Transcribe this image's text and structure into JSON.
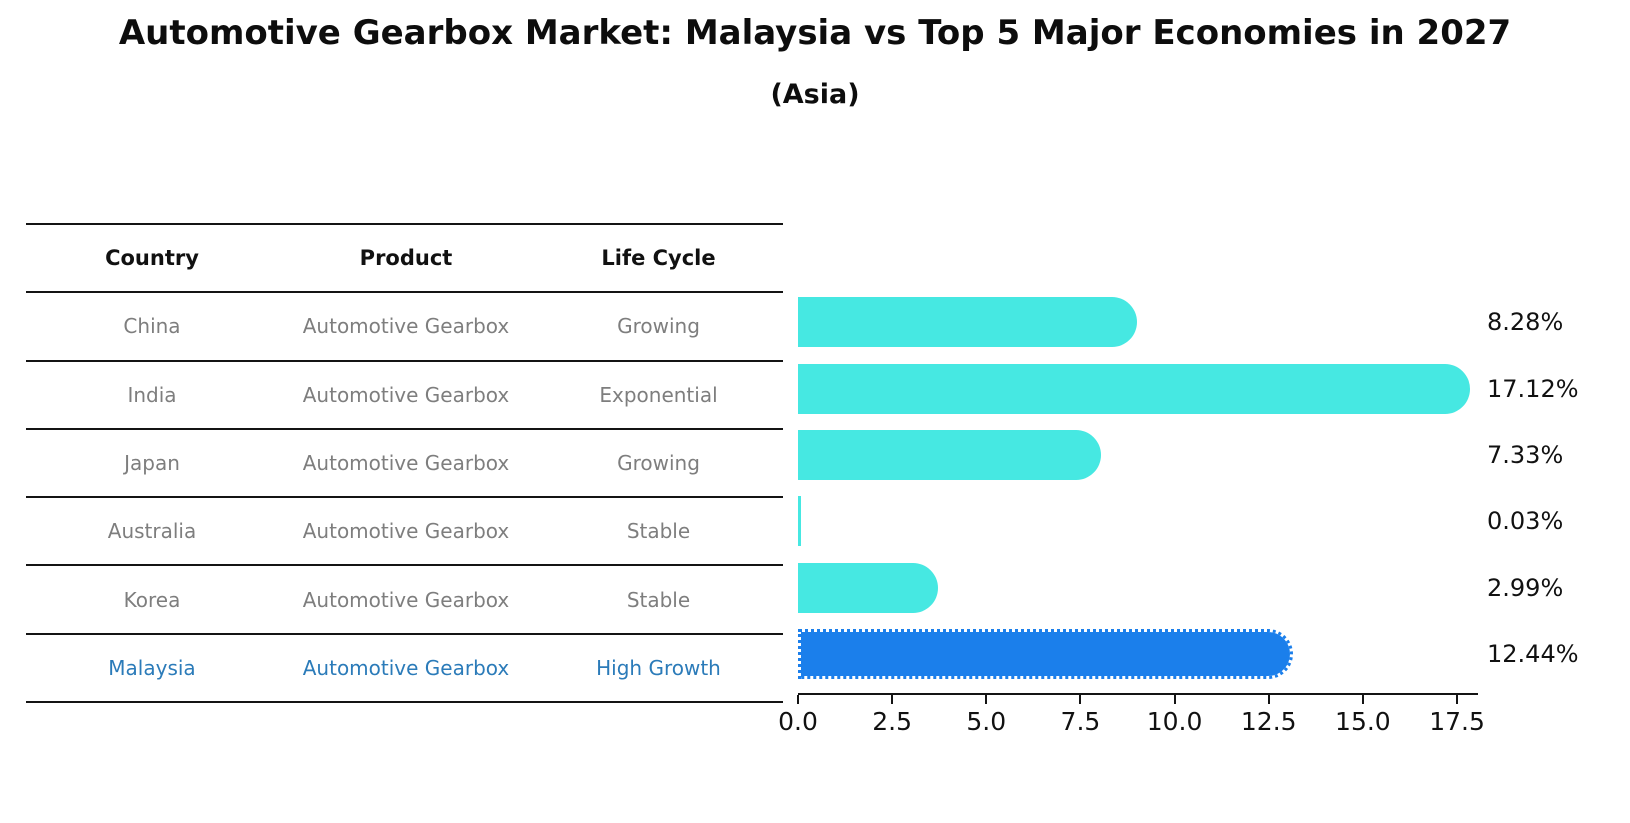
{
  "title": "Automotive Gearbox Market: Malaysia vs Top 5 Major Economies in 2027",
  "subtitle": "(Asia)",
  "table": {
    "headers": [
      "Country",
      "Product",
      "Life Cycle"
    ],
    "rows": [
      {
        "country": "China",
        "product": "Automotive Gearbox",
        "life_cycle": "Growing",
        "highlight": false
      },
      {
        "country": "India",
        "product": "Automotive Gearbox",
        "life_cycle": "Exponential",
        "highlight": false
      },
      {
        "country": "Japan",
        "product": "Automotive Gearbox",
        "life_cycle": "Growing",
        "highlight": false
      },
      {
        "country": "Australia",
        "product": "Automotive Gearbox",
        "life_cycle": "Stable",
        "highlight": false
      },
      {
        "country": "Korea",
        "product": "Automotive Gearbox",
        "life_cycle": "Stable",
        "highlight": false
      },
      {
        "country": "Malaysia",
        "product": "Automotive Gearbox",
        "life_cycle": "High Growth",
        "highlight": true
      }
    ]
  },
  "chart_data": {
    "type": "bar",
    "orientation": "horizontal",
    "title": "Automotive Gearbox Market: Malaysia vs Top 5 Major Economies in 2027",
    "subtitle": "(Asia)",
    "categories": [
      "China",
      "India",
      "Japan",
      "Australia",
      "Korea",
      "Malaysia"
    ],
    "values": [
      8.28,
      17.12,
      7.33,
      0.03,
      2.99,
      12.44
    ],
    "value_labels": [
      "8.28%",
      "17.12%",
      "7.33%",
      "0.03%",
      "2.99%",
      "12.44%"
    ],
    "x_ticks": [
      "0.0",
      "2.5",
      "5.0",
      "7.5",
      "10.0",
      "12.5",
      "15.0",
      "17.5"
    ],
    "xlim": [
      0,
      18
    ],
    "xlabel": "",
    "ylabel": "",
    "grid": false,
    "legend": "none",
    "bar_color": "#46e8e2",
    "highlight_color": "#1b7feb",
    "highlight_index": 5,
    "highlight_border_style": "dotted"
  },
  "colors": {
    "text": "#111111",
    "muted_text": "#7e7e7e",
    "highlight_text": "#2b7bb9",
    "rule": "#141414",
    "background": "#ffffff"
  }
}
